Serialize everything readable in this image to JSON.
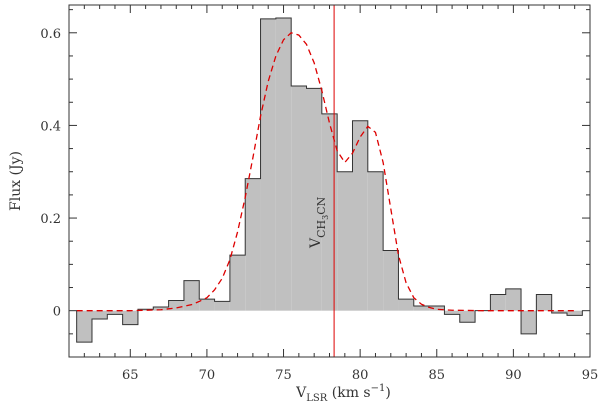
{
  "chart_data": {
    "type": "bar",
    "xlabel": {
      "main": "V",
      "sub": "LSR",
      "units": "(km s",
      "units_sup": "−1",
      "units_close": ")"
    },
    "ylabel": "Flux (Jy)",
    "xlim": [
      61,
      95
    ],
    "ylim": [
      -0.1,
      0.66
    ],
    "xticks": [
      65,
      70,
      75,
      80,
      85,
      90,
      95
    ],
    "yticks": [
      0,
      0.2,
      0.4,
      0.6
    ],
    "xtick_labels": [
      "65",
      "70",
      "75",
      "80",
      "85",
      "90",
      "95"
    ],
    "ytick_labels": [
      "0",
      "0.2",
      "0.4",
      "0.6"
    ],
    "grid": false,
    "bin_width": 1.0,
    "bins": {
      "left_edges": [
        61.5,
        62.5,
        63.5,
        64.5,
        65.5,
        66.5,
        67.5,
        68.5,
        69.5,
        70.5,
        71.5,
        72.5,
        73.5,
        74.5,
        75.5,
        76.5,
        77.5,
        78.5,
        79.5,
        80.5,
        81.5,
        82.5,
        83.5,
        84.5,
        85.5,
        86.5,
        87.5,
        88.5,
        89.5,
        90.5,
        91.5,
        92.5,
        93.5
      ],
      "values": [
        -0.068,
        -0.018,
        -0.008,
        -0.03,
        0.003,
        0.008,
        0.022,
        0.065,
        0.025,
        0.02,
        0.12,
        0.285,
        0.63,
        0.632,
        0.485,
        0.48,
        0.425,
        0.3,
        0.41,
        0.3,
        0.13,
        0.025,
        0.01,
        0.01,
        -0.008,
        -0.025,
        0.0,
        0.035,
        0.047,
        -0.05,
        0.035,
        -0.005,
        -0.01
      ]
    },
    "series": [
      {
        "style": "red dashed",
        "x": [
          61.5,
          62.0,
          63.0,
          64.0,
          65.0,
          66.0,
          67.0,
          68.0,
          69.0,
          69.5,
          70.0,
          70.5,
          71.0,
          71.5,
          72.0,
          72.5,
          73.0,
          73.5,
          74.0,
          74.5,
          75.0,
          75.5,
          76.0,
          76.5,
          77.0,
          77.5,
          78.0,
          78.5,
          79.0,
          79.5,
          80.0,
          80.5,
          81.0,
          81.5,
          82.0,
          82.5,
          83.0,
          83.5,
          84.0,
          84.5,
          85.0,
          86.0,
          88.0,
          90.0,
          92.0,
          94.0
        ],
        "values": [
          0.0,
          0.0,
          0.0,
          0.0,
          0.0,
          0.001,
          0.002,
          0.006,
          0.013,
          0.02,
          0.028,
          0.045,
          0.07,
          0.11,
          0.17,
          0.245,
          0.33,
          0.42,
          0.495,
          0.55,
          0.585,
          0.6,
          0.595,
          0.575,
          0.535,
          0.475,
          0.405,
          0.345,
          0.32,
          0.34,
          0.375,
          0.398,
          0.385,
          0.32,
          0.22,
          0.12,
          0.06,
          0.028,
          0.014,
          0.007,
          0.003,
          0.001,
          0.0,
          0.0,
          0.0,
          0.0
        ]
      }
    ],
    "vline": {
      "x": 78.3,
      "label_main": "V",
      "label_sub": "CH",
      "label_sub2": "3",
      "label_sub3": "CN"
    }
  },
  "colors": {
    "fill": "#c0c0c0",
    "outline": "#333333",
    "model": "#dd0000",
    "vline": "#dd0000",
    "axis": "#333333"
  }
}
